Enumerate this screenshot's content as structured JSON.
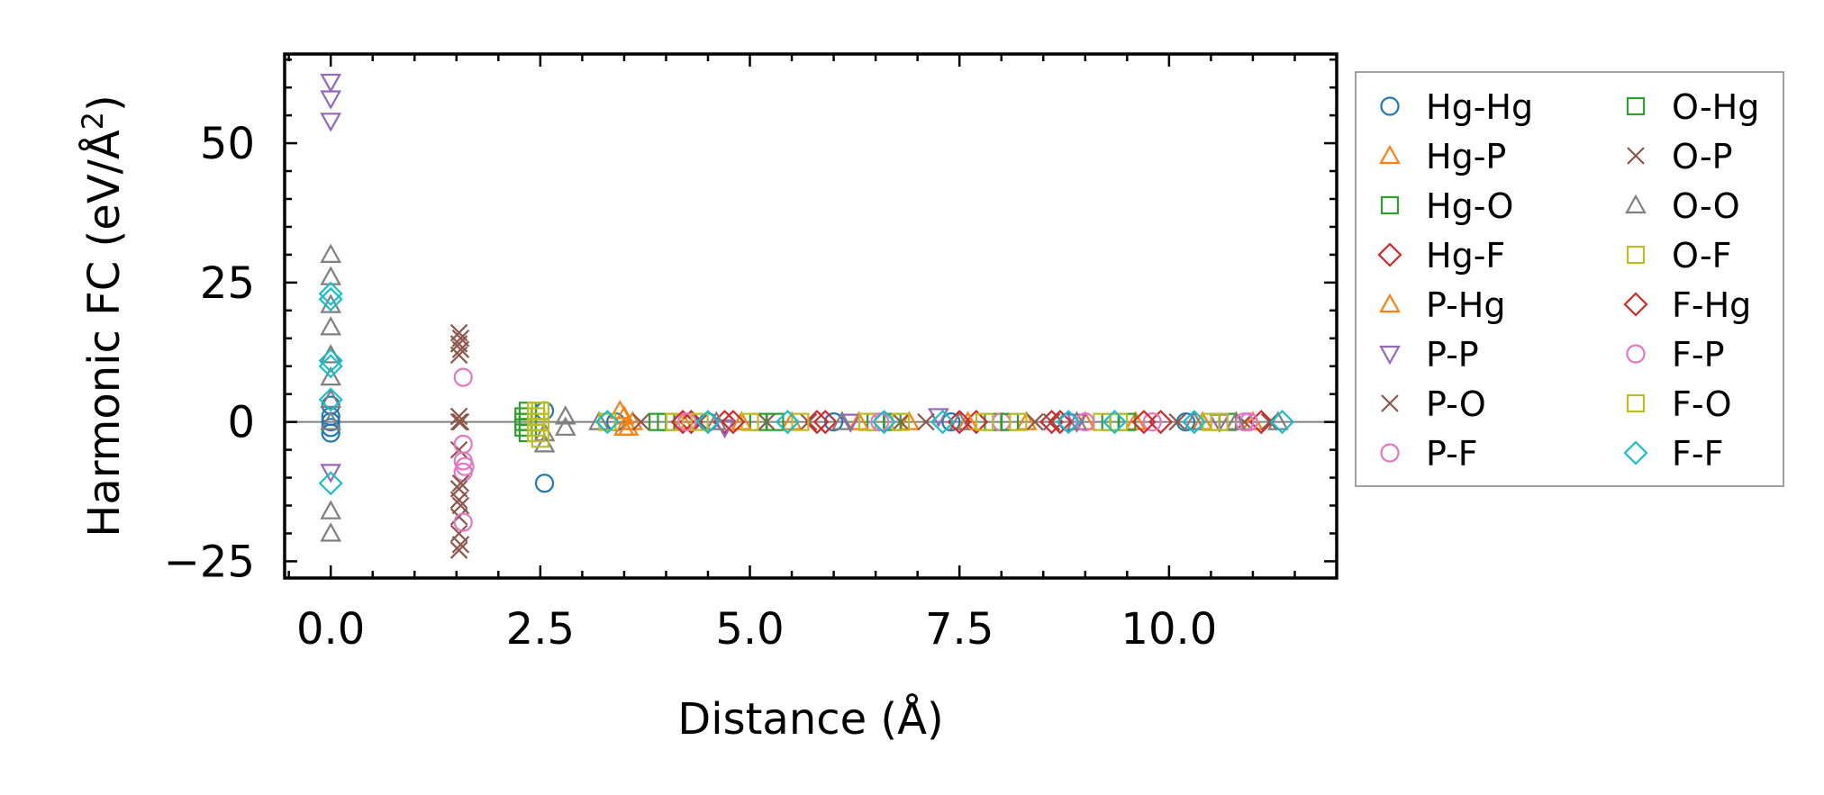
{
  "chart_data": {
    "type": "scatter",
    "title": "",
    "xlabel": "Distance (Å)",
    "ylabel_main": "Harmonic FC (eV/Å",
    "ylabel_sup": "2",
    "ylabel_close": ")",
    "xlim": [
      -0.55,
      12.0
    ],
    "ylim": [
      -28,
      66
    ],
    "xticks": [
      0.0,
      2.5,
      5.0,
      7.5,
      10.0
    ],
    "xtick_labels": [
      "0.0",
      "2.5",
      "5.0",
      "7.5",
      "10.0"
    ],
    "yticks": [
      -25,
      0,
      25,
      50
    ],
    "ytick_labels": [
      "−25",
      "0",
      "25",
      "50"
    ],
    "grid": false,
    "zero_line": 0,
    "legend_position": "outside-right",
    "legend_columns": 2,
    "series": [
      {
        "name": "Hg-Hg",
        "marker": "circle",
        "color": "#1f77b4",
        "points": [
          [
            0,
            3
          ],
          [
            0,
            1
          ],
          [
            0,
            0
          ],
          [
            0,
            -1
          ],
          [
            0,
            -2
          ],
          [
            2.55,
            2
          ],
          [
            2.55,
            -11
          ],
          [
            3.4,
            0
          ],
          [
            4.5,
            0
          ],
          [
            6.0,
            0
          ],
          [
            7.4,
            0
          ],
          [
            8.8,
            0
          ],
          [
            10.2,
            0
          ]
        ]
      },
      {
        "name": "Hg-P",
        "marker": "triangle-up",
        "color": "#ff7f0e",
        "points": [
          [
            3.5,
            1
          ],
          [
            3.5,
            -1
          ],
          [
            3.6,
            0
          ],
          [
            4.2,
            0
          ],
          [
            5.5,
            0
          ],
          [
            6.9,
            0
          ],
          [
            8.3,
            0
          ],
          [
            9.6,
            0
          ],
          [
            11.0,
            0
          ]
        ]
      },
      {
        "name": "Hg-O",
        "marker": "square",
        "color": "#2ca02c",
        "points": [
          [
            2.3,
            1
          ],
          [
            2.3,
            0
          ],
          [
            2.3,
            -1
          ],
          [
            3.9,
            0
          ],
          [
            5.1,
            0
          ],
          [
            6.5,
            0
          ],
          [
            7.9,
            0
          ],
          [
            9.3,
            0
          ],
          [
            10.7,
            0
          ]
        ]
      },
      {
        "name": "Hg-F",
        "marker": "diamond",
        "color": "#d62728",
        "points": [
          [
            4.3,
            0
          ],
          [
            4.7,
            0
          ],
          [
            5.9,
            0
          ],
          [
            7.7,
            0
          ],
          [
            8.6,
            0
          ],
          [
            9.9,
            0
          ],
          [
            11.1,
            0
          ]
        ]
      },
      {
        "name": "P-Hg",
        "marker": "triangle-up",
        "color": "#ff7f0e",
        "points": [
          [
            3.45,
            2
          ],
          [
            3.55,
            -1
          ],
          [
            4.9,
            0
          ],
          [
            6.3,
            0
          ],
          [
            7.6,
            0
          ],
          [
            9.0,
            0
          ],
          [
            10.4,
            0
          ]
        ]
      },
      {
        "name": "P-P",
        "marker": "triangle-down",
        "color": "#9467bd",
        "points": [
          [
            0,
            61
          ],
          [
            0,
            58
          ],
          [
            0,
            54
          ],
          [
            0,
            -9
          ],
          [
            4.7,
            -1
          ],
          [
            6.2,
            0
          ],
          [
            7.25,
            1
          ],
          [
            8.9,
            0
          ],
          [
            10.6,
            0
          ]
        ]
      },
      {
        "name": "P-O",
        "marker": "x",
        "color": "#8c564b",
        "points": [
          [
            1.53,
            16
          ],
          [
            1.53,
            14
          ],
          [
            1.53,
            12
          ],
          [
            1.53,
            1
          ],
          [
            1.53,
            0
          ],
          [
            1.53,
            -5
          ],
          [
            1.53,
            -12
          ],
          [
            1.53,
            -14
          ],
          [
            1.53,
            -17
          ],
          [
            1.53,
            -20
          ],
          [
            1.53,
            -23
          ],
          [
            3.7,
            0
          ],
          [
            5.2,
            0
          ],
          [
            6.8,
            0
          ],
          [
            8.4,
            0
          ],
          [
            10.9,
            0
          ]
        ]
      },
      {
        "name": "P-F",
        "marker": "circle",
        "color": "#e377c2",
        "points": [
          [
            1.58,
            8
          ],
          [
            1.58,
            -4
          ],
          [
            1.58,
            -7
          ],
          [
            1.58,
            -9
          ],
          [
            1.58,
            -18
          ],
          [
            4.2,
            0
          ],
          [
            6.6,
            0
          ],
          [
            8.0,
            0
          ],
          [
            9.8,
            0
          ],
          [
            10.95,
            0
          ]
        ]
      },
      {
        "name": "O-Hg",
        "marker": "square",
        "color": "#2ca02c",
        "points": [
          [
            2.35,
            2
          ],
          [
            2.35,
            0
          ],
          [
            2.35,
            -2
          ],
          [
            4.0,
            0
          ],
          [
            5.3,
            0
          ],
          [
            6.7,
            0
          ],
          [
            8.1,
            0
          ],
          [
            9.5,
            0
          ]
        ]
      },
      {
        "name": "O-P",
        "marker": "x",
        "color": "#8c564b",
        "points": [
          [
            1.55,
            15
          ],
          [
            1.55,
            13
          ],
          [
            1.55,
            0
          ],
          [
            1.55,
            -11
          ],
          [
            1.55,
            -15
          ],
          [
            1.55,
            -22
          ],
          [
            4.4,
            0
          ],
          [
            5.7,
            0
          ],
          [
            7.1,
            0
          ],
          [
            8.6,
            0
          ],
          [
            10.1,
            0
          ],
          [
            11.2,
            0
          ]
        ]
      },
      {
        "name": "O-O",
        "marker": "triangle-up",
        "color": "#7f7f7f",
        "points": [
          [
            0,
            30
          ],
          [
            0,
            26
          ],
          [
            0,
            21
          ],
          [
            0,
            17
          ],
          [
            0,
            12
          ],
          [
            0,
            8
          ],
          [
            0,
            4
          ],
          [
            0,
            0
          ],
          [
            0,
            -16
          ],
          [
            0,
            -20
          ],
          [
            2.55,
            -2
          ],
          [
            2.55,
            -4
          ],
          [
            2.8,
            1
          ],
          [
            2.8,
            -1
          ],
          [
            3.2,
            0
          ],
          [
            4.6,
            0
          ],
          [
            6.1,
            0
          ],
          [
            7.5,
            0
          ],
          [
            8.9,
            0
          ],
          [
            10.3,
            0
          ],
          [
            10.8,
            0
          ],
          [
            11.3,
            0
          ]
        ]
      },
      {
        "name": "O-F",
        "marker": "square",
        "color": "#bcbd22",
        "points": [
          [
            2.45,
            2
          ],
          [
            2.45,
            1
          ],
          [
            2.45,
            0
          ],
          [
            2.45,
            -1
          ],
          [
            2.45,
            -2
          ],
          [
            4.1,
            0
          ],
          [
            5.0,
            0
          ],
          [
            6.4,
            0
          ],
          [
            7.8,
            0
          ],
          [
            9.2,
            0
          ],
          [
            10.5,
            0
          ]
        ]
      },
      {
        "name": "F-Hg",
        "marker": "diamond",
        "color": "#d62728",
        "points": [
          [
            4.2,
            0
          ],
          [
            4.8,
            0
          ],
          [
            5.8,
            0
          ],
          [
            7.5,
            0
          ],
          [
            8.7,
            0
          ],
          [
            9.7,
            0
          ]
        ]
      },
      {
        "name": "F-P",
        "marker": "circle",
        "color": "#e377c2",
        "points": [
          [
            1.6,
            -8
          ],
          [
            4.25,
            0
          ],
          [
            6.55,
            0
          ],
          [
            9.0,
            0
          ],
          [
            10.9,
            0
          ]
        ]
      },
      {
        "name": "F-O",
        "marker": "square",
        "color": "#bcbd22",
        "points": [
          [
            2.5,
            2
          ],
          [
            2.5,
            0
          ],
          [
            2.5,
            -3
          ],
          [
            3.3,
            0
          ],
          [
            4.4,
            0
          ],
          [
            5.6,
            0
          ],
          [
            6.8,
            0
          ],
          [
            8.2,
            0
          ],
          [
            9.4,
            0
          ],
          [
            10.6,
            0
          ]
        ]
      },
      {
        "name": "F-F",
        "marker": "diamond",
        "color": "#17becf",
        "points": [
          [
            0,
            23
          ],
          [
            0,
            22
          ],
          [
            0,
            11
          ],
          [
            0,
            10
          ],
          [
            0,
            4
          ],
          [
            0,
            -11
          ],
          [
            3.3,
            0
          ],
          [
            4.5,
            0
          ],
          [
            5.45,
            0
          ],
          [
            6.6,
            0
          ],
          [
            7.3,
            0
          ],
          [
            8.8,
            0
          ],
          [
            9.35,
            0
          ],
          [
            10.3,
            0
          ],
          [
            11.35,
            0
          ]
        ]
      }
    ]
  }
}
